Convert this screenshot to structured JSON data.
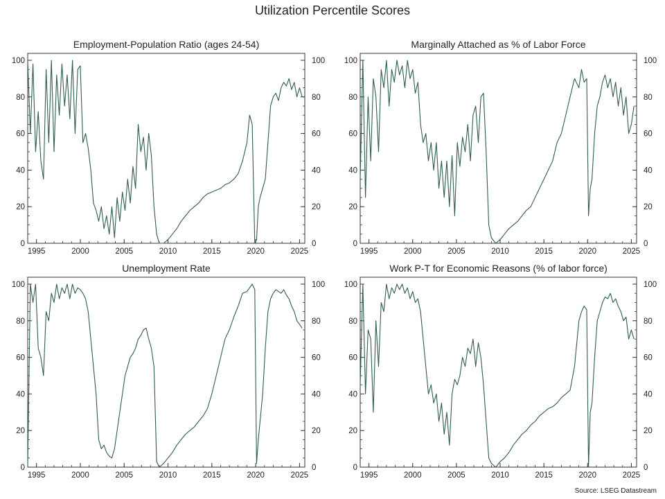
{
  "title": "Utilization Percentile Scores",
  "source": "Source: LSEG Datastream",
  "line_color": "#2f5d4c",
  "chart_data": [
    {
      "type": "line",
      "title": "Employment-Population Ratio (ages 24-54)",
      "xlabel": "",
      "ylabel": "",
      "xlim": [
        1994,
        2025.6
      ],
      "ylim": [
        0,
        100
      ],
      "xticks": [
        1995,
        2000,
        2005,
        2010,
        2015,
        2020,
        2025
      ],
      "yticks": [
        0,
        20,
        40,
        60,
        80,
        100
      ],
      "series": [
        {
          "x": [
            1994.0,
            1994.3,
            1994.6,
            1994.9,
            1995.2,
            1995.5,
            1995.8,
            1996.1,
            1996.4,
            1996.7,
            1997.0,
            1997.3,
            1997.6,
            1997.9,
            1998.2,
            1998.5,
            1998.8,
            1999.1,
            1999.4,
            1999.7,
            2000.0,
            2000.3,
            2000.6,
            2000.9,
            2001.2,
            2001.5,
            2001.8,
            2002.1,
            2002.4,
            2002.7,
            2003.0,
            2003.3,
            2003.6,
            2003.9,
            2004.2,
            2004.5,
            2004.8,
            2005.1,
            2005.4,
            2005.7,
            2006.0,
            2006.3,
            2006.6,
            2006.9,
            2007.2,
            2007.5,
            2007.8,
            2008.1,
            2008.4,
            2008.7,
            2009.0,
            2009.5,
            2010.0,
            2010.5,
            2011.0,
            2011.5,
            2012.0,
            2012.5,
            2013.0,
            2013.5,
            2014.0,
            2014.5,
            2015.0,
            2015.5,
            2016.0,
            2016.5,
            2017.0,
            2017.5,
            2018.0,
            2018.5,
            2019.0,
            2019.3,
            2019.6,
            2019.9,
            2020.1,
            2020.3,
            2020.5,
            2020.8,
            2021.1,
            2021.4,
            2021.7,
            2022.0,
            2022.3,
            2022.6,
            2022.9,
            2023.2,
            2023.5,
            2023.8,
            2024.1,
            2024.4,
            2024.7,
            2025.0,
            2025.3
          ],
          "y": [
            100,
            60,
            98,
            50,
            72,
            45,
            35,
            95,
            55,
            100,
            50,
            92,
            70,
            98,
            75,
            92,
            68,
            100,
            60,
            95,
            97,
            55,
            60,
            52,
            40,
            22,
            18,
            12,
            20,
            8,
            15,
            5,
            20,
            3,
            25,
            12,
            28,
            18,
            35,
            22,
            42,
            30,
            65,
            50,
            58,
            40,
            60,
            48,
            20,
            5,
            0,
            0,
            2,
            5,
            8,
            12,
            15,
            18,
            20,
            22,
            25,
            27,
            28,
            29,
            30,
            32,
            33,
            35,
            38,
            45,
            55,
            70,
            65,
            0,
            2,
            20,
            25,
            30,
            35,
            55,
            75,
            80,
            82,
            78,
            85,
            88,
            86,
            90,
            84,
            88,
            80,
            85,
            80
          ]
        }
      ]
    },
    {
      "type": "line",
      "title": "Marginally Attached as % of Labor Force",
      "xlabel": "",
      "ylabel": "",
      "xlim": [
        1994,
        2025.6
      ],
      "ylim": [
        0,
        100
      ],
      "xticks": [
        1995,
        2000,
        2005,
        2010,
        2015,
        2020,
        2025
      ],
      "yticks": [
        0,
        20,
        40,
        60,
        80,
        100
      ],
      "series": [
        {
          "x": [
            1994.0,
            1994.3,
            1994.6,
            1994.9,
            1995.2,
            1995.5,
            1995.8,
            1996.1,
            1996.4,
            1996.7,
            1997.0,
            1997.3,
            1997.6,
            1997.9,
            1998.2,
            1998.5,
            1998.8,
            1999.1,
            1999.4,
            1999.7,
            2000.0,
            2000.3,
            2000.6,
            2000.9,
            2001.2,
            2001.5,
            2001.8,
            2002.1,
            2002.4,
            2002.7,
            2003.0,
            2003.3,
            2003.6,
            2003.9,
            2004.2,
            2004.5,
            2004.8,
            2005.1,
            2005.4,
            2005.7,
            2006.0,
            2006.3,
            2006.6,
            2006.9,
            2007.2,
            2007.5,
            2007.8,
            2008.1,
            2008.4,
            2008.7,
            2009.0,
            2009.5,
            2010.0,
            2010.5,
            2011.0,
            2011.5,
            2012.0,
            2012.5,
            2013.0,
            2013.5,
            2014.0,
            2014.5,
            2015.0,
            2015.5,
            2016.0,
            2016.5,
            2017.0,
            2017.5,
            2018.0,
            2018.5,
            2019.0,
            2019.3,
            2019.6,
            2019.9,
            2020.1,
            2020.3,
            2020.5,
            2020.8,
            2021.1,
            2021.4,
            2021.7,
            2022.0,
            2022.3,
            2022.6,
            2022.9,
            2023.2,
            2023.5,
            2023.8,
            2024.1,
            2024.4,
            2024.7,
            2025.0,
            2025.3
          ],
          "y": [
            35,
            100,
            25,
            80,
            45,
            90,
            80,
            50,
            95,
            85,
            100,
            75,
            95,
            88,
            100,
            92,
            97,
            85,
            100,
            90,
            95,
            82,
            88,
            65,
            55,
            60,
            45,
            55,
            40,
            55,
            30,
            45,
            25,
            45,
            20,
            48,
            15,
            55,
            42,
            58,
            50,
            65,
            45,
            70,
            75,
            55,
            80,
            82,
            50,
            10,
            3,
            0,
            2,
            5,
            8,
            10,
            12,
            15,
            18,
            20,
            25,
            30,
            35,
            40,
            45,
            55,
            60,
            70,
            80,
            90,
            85,
            95,
            88,
            90,
            15,
            30,
            35,
            60,
            75,
            80,
            88,
            92,
            85,
            90,
            80,
            88,
            75,
            85,
            70,
            80,
            60,
            65,
            75
          ]
        }
      ]
    },
    {
      "type": "line",
      "title": "Unemployment Rate",
      "xlabel": "",
      "ylabel": "",
      "xlim": [
        1994,
        2025.6
      ],
      "ylim": [
        0,
        100
      ],
      "xticks": [
        1995,
        2000,
        2005,
        2010,
        2015,
        2020,
        2025
      ],
      "yticks": [
        0,
        20,
        40,
        60,
        80,
        100
      ],
      "series": [
        {
          "x": [
            1994.0,
            1994.3,
            1994.6,
            1994.9,
            1995.2,
            1995.5,
            1995.8,
            1996.1,
            1996.4,
            1996.7,
            1997.0,
            1997.3,
            1997.6,
            1997.9,
            1998.2,
            1998.5,
            1998.8,
            1999.1,
            1999.4,
            1999.7,
            2000.0,
            2000.3,
            2000.6,
            2000.9,
            2001.2,
            2001.5,
            2001.8,
            2002.1,
            2002.4,
            2002.7,
            2003.0,
            2003.3,
            2003.6,
            2003.9,
            2004.2,
            2004.5,
            2004.8,
            2005.1,
            2005.4,
            2005.7,
            2006.0,
            2006.3,
            2006.6,
            2006.9,
            2007.2,
            2007.5,
            2007.8,
            2008.1,
            2008.4,
            2008.7,
            2009.0,
            2009.5,
            2010.0,
            2010.5,
            2011.0,
            2011.5,
            2012.0,
            2012.5,
            2013.0,
            2013.5,
            2014.0,
            2014.5,
            2015.0,
            2015.5,
            2016.0,
            2016.5,
            2017.0,
            2017.5,
            2018.0,
            2018.5,
            2019.0,
            2019.3,
            2019.6,
            2019.9,
            2020.1,
            2020.3,
            2020.5,
            2020.8,
            2021.1,
            2021.4,
            2021.7,
            2022.0,
            2022.3,
            2022.6,
            2022.9,
            2023.2,
            2023.5,
            2023.8,
            2024.1,
            2024.4,
            2024.7,
            2025.0,
            2025.3
          ],
          "y": [
            0,
            100,
            90,
            100,
            65,
            60,
            50,
            85,
            80,
            95,
            90,
            100,
            92,
            98,
            95,
            100,
            92,
            100,
            95,
            98,
            97,
            95,
            92,
            85,
            70,
            55,
            40,
            15,
            10,
            12,
            8,
            6,
            5,
            10,
            20,
            30,
            40,
            50,
            55,
            60,
            62,
            65,
            70,
            72,
            75,
            76,
            70,
            65,
            55,
            3,
            0,
            2,
            5,
            8,
            12,
            15,
            18,
            20,
            22,
            25,
            28,
            32,
            40,
            50,
            60,
            70,
            75,
            82,
            88,
            95,
            96,
            98,
            100,
            97,
            2,
            15,
            25,
            40,
            65,
            85,
            92,
            95,
            97,
            96,
            95,
            97,
            94,
            92,
            88,
            85,
            80,
            78,
            76
          ]
        }
      ]
    },
    {
      "type": "line",
      "title": "Work P-T for Economic Reasons (% of labor force)",
      "xlabel": "",
      "ylabel": "",
      "xlim": [
        1994,
        2025.6
      ],
      "ylim": [
        0,
        100
      ],
      "xticks": [
        1995,
        2000,
        2005,
        2010,
        2015,
        2020,
        2025
      ],
      "yticks": [
        0,
        20,
        40,
        60,
        80,
        100
      ],
      "series": [
        {
          "x": [
            1994.0,
            1994.3,
            1994.6,
            1994.9,
            1995.2,
            1995.5,
            1995.8,
            1996.1,
            1996.4,
            1996.7,
            1997.0,
            1997.3,
            1997.6,
            1997.9,
            1998.2,
            1998.5,
            1998.8,
            1999.1,
            1999.4,
            1999.7,
            2000.0,
            2000.3,
            2000.6,
            2000.9,
            2001.2,
            2001.5,
            2001.8,
            2002.1,
            2002.4,
            2002.7,
            2003.0,
            2003.3,
            2003.6,
            2003.9,
            2004.2,
            2004.5,
            2004.8,
            2005.1,
            2005.4,
            2005.7,
            2006.0,
            2006.3,
            2006.6,
            2006.9,
            2007.2,
            2007.5,
            2007.8,
            2008.1,
            2008.4,
            2008.7,
            2009.0,
            2009.5,
            2010.0,
            2010.5,
            2011.0,
            2011.5,
            2012.0,
            2012.5,
            2013.0,
            2013.5,
            2014.0,
            2014.5,
            2015.0,
            2015.5,
            2016.0,
            2016.5,
            2017.0,
            2017.5,
            2018.0,
            2018.5,
            2019.0,
            2019.3,
            2019.6,
            2019.9,
            2020.1,
            2020.3,
            2020.5,
            2020.8,
            2021.1,
            2021.4,
            2021.7,
            2022.0,
            2022.3,
            2022.6,
            2022.9,
            2023.2,
            2023.5,
            2023.8,
            2024.1,
            2024.4,
            2024.7,
            2025.0,
            2025.3
          ],
          "y": [
            45,
            100,
            40,
            75,
            70,
            30,
            80,
            55,
            90,
            85,
            100,
            92,
            98,
            95,
            100,
            97,
            100,
            95,
            98,
            92,
            96,
            90,
            92,
            85,
            70,
            55,
            40,
            45,
            35,
            40,
            25,
            35,
            18,
            30,
            12,
            40,
            48,
            45,
            50,
            60,
            55,
            65,
            62,
            70,
            55,
            68,
            60,
            45,
            25,
            5,
            2,
            0,
            3,
            5,
            8,
            12,
            15,
            18,
            20,
            23,
            25,
            28,
            30,
            32,
            33,
            35,
            38,
            40,
            42,
            55,
            80,
            85,
            88,
            86,
            0,
            30,
            35,
            60,
            80,
            85,
            90,
            93,
            92,
            95,
            90,
            92,
            88,
            85,
            80,
            82,
            70,
            75,
            70
          ]
        }
      ]
    }
  ]
}
